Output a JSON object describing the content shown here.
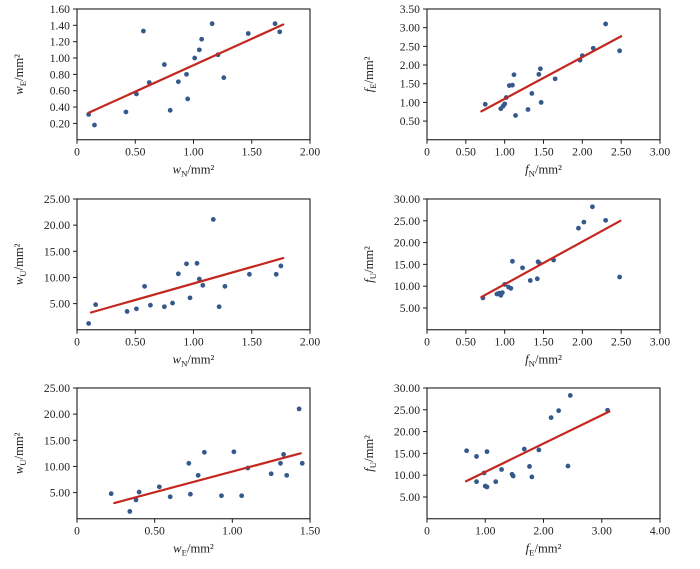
{
  "figure": {
    "background": "#ffffff",
    "layout": "2x3-scatter-grid"
  },
  "colors": {
    "marker": "#36598c",
    "trend": "#c4271f",
    "frame": "#1c1c1c",
    "text": "#1c1c1c"
  },
  "chart_data": [
    {
      "id": "wE-vs-wN",
      "type": "scatter",
      "x_var": "w",
      "x_sub": "N",
      "y_var": "w",
      "y_sub": "E",
      "unit": "/mm²",
      "xlabel": "wN/mm²",
      "ylabel": "wE/mm²",
      "xlim": [
        0,
        2.0
      ],
      "ylim": [
        0,
        1.6
      ],
      "grid": false,
      "legend": "none",
      "xticks": {
        "values": [
          0,
          0.5,
          1.0,
          1.5,
          2.0
        ],
        "labels": [
          "0",
          "0.50",
          "1.00",
          "1.50",
          "2.00"
        ]
      },
      "yticks": {
        "values": [
          0.2,
          0.4,
          0.6,
          0.8,
          1.0,
          1.2,
          1.4,
          1.6
        ],
        "labels": [
          "0.20",
          "0.40",
          "0.60",
          "0.80",
          "1.00",
          "1.20",
          "1.40",
          "1.60"
        ]
      },
      "points": [
        [
          0.1,
          0.31
        ],
        [
          0.15,
          0.18
        ],
        [
          0.42,
          0.34
        ],
        [
          0.51,
          0.56
        ],
        [
          0.57,
          1.33
        ],
        [
          0.62,
          0.7
        ],
        [
          0.75,
          0.92
        ],
        [
          0.8,
          0.36
        ],
        [
          0.87,
          0.71
        ],
        [
          0.94,
          0.8
        ],
        [
          0.95,
          0.5
        ],
        [
          1.01,
          1.0
        ],
        [
          1.05,
          1.1
        ],
        [
          1.07,
          1.23
        ],
        [
          1.16,
          1.42
        ],
        [
          1.21,
          1.04
        ],
        [
          1.26,
          0.76
        ],
        [
          1.47,
          1.3
        ],
        [
          1.7,
          1.42
        ],
        [
          1.74,
          1.32
        ]
      ],
      "trend": [
        [
          0.1,
          0.33
        ],
        [
          1.77,
          1.41
        ]
      ]
    },
    {
      "id": "fE-vs-fN",
      "type": "scatter",
      "x_var": "f",
      "x_sub": "N",
      "y_var": "f",
      "y_sub": "E",
      "unit": "/mm²",
      "xlabel": "fN/mm²",
      "ylabel": "fE/mm²",
      "xlim": [
        0,
        3.0
      ],
      "ylim": [
        0,
        3.5
      ],
      "grid": false,
      "legend": "none",
      "xticks": {
        "values": [
          0,
          0.5,
          1.0,
          1.5,
          2.0,
          2.5,
          3.0
        ],
        "labels": [
          "0",
          "0.50",
          "1.00",
          "1.50",
          "2.00",
          "2.50",
          "3.00"
        ]
      },
      "yticks": {
        "values": [
          0.5,
          1.0,
          1.5,
          2.0,
          2.5,
          3.0,
          3.5
        ],
        "labels": [
          "0.50",
          "1.00",
          "1.50",
          "2.00",
          "2.50",
          "3.00",
          "3.50"
        ]
      },
      "points": [
        [
          0.75,
          0.95
        ],
        [
          0.95,
          0.83
        ],
        [
          0.98,
          0.9
        ],
        [
          1.0,
          0.96
        ],
        [
          1.02,
          1.13
        ],
        [
          1.06,
          1.45
        ],
        [
          1.1,
          1.46
        ],
        [
          1.12,
          1.74
        ],
        [
          1.14,
          0.65
        ],
        [
          1.3,
          0.81
        ],
        [
          1.35,
          1.24
        ],
        [
          1.44,
          1.75
        ],
        [
          1.46,
          1.9
        ],
        [
          1.47,
          1.0
        ],
        [
          1.65,
          1.63
        ],
        [
          1.97,
          2.13
        ],
        [
          2.0,
          2.25
        ],
        [
          2.14,
          2.45
        ],
        [
          2.3,
          3.1
        ],
        [
          2.48,
          2.38
        ]
      ],
      "trend": [
        [
          0.7,
          0.76
        ],
        [
          2.5,
          2.77
        ]
      ]
    },
    {
      "id": "wU-vs-wN",
      "type": "scatter",
      "x_var": "w",
      "x_sub": "N",
      "y_var": "w",
      "y_sub": "U",
      "unit": "/mm²",
      "xlabel": "wN/mm²",
      "ylabel": "wU/mm²",
      "xlim": [
        0,
        2.0
      ],
      "ylim": [
        0,
        25.0
      ],
      "grid": false,
      "legend": "none",
      "xticks": {
        "values": [
          0,
          0.5,
          1.0,
          1.5,
          2.0
        ],
        "labels": [
          "0",
          "0.50",
          "1.00",
          "1.50",
          "2.00"
        ]
      },
      "yticks": {
        "values": [
          5,
          10,
          15,
          20,
          25
        ],
        "labels": [
          "5.00",
          "10.00",
          "15.00",
          "20.00",
          "25.00"
        ]
      },
      "points": [
        [
          0.1,
          1.2
        ],
        [
          0.16,
          4.8
        ],
        [
          0.43,
          3.5
        ],
        [
          0.51,
          4.0
        ],
        [
          0.58,
          8.3
        ],
        [
          0.63,
          4.7
        ],
        [
          0.75,
          4.4
        ],
        [
          0.82,
          5.1
        ],
        [
          0.87,
          10.7
        ],
        [
          0.94,
          12.6
        ],
        [
          0.97,
          6.1
        ],
        [
          1.03,
          12.7
        ],
        [
          1.05,
          9.7
        ],
        [
          1.08,
          8.5
        ],
        [
          1.17,
          21.1
        ],
        [
          1.22,
          4.4
        ],
        [
          1.27,
          8.3
        ],
        [
          1.48,
          10.6
        ],
        [
          1.71,
          10.6
        ],
        [
          1.75,
          12.2
        ]
      ],
      "trend": [
        [
          0.12,
          3.3
        ],
        [
          1.77,
          13.7
        ]
      ]
    },
    {
      "id": "fU-vs-fN",
      "type": "scatter",
      "x_var": "f",
      "x_sub": "N",
      "y_var": "f",
      "y_sub": "U",
      "unit": "/mm²",
      "xlabel": "fN/mm²",
      "ylabel": "fU/mm²",
      "xlim": [
        0,
        3.0
      ],
      "ylim": [
        0,
        30.0
      ],
      "grid": false,
      "legend": "none",
      "xticks": {
        "values": [
          0,
          0.5,
          1.0,
          1.5,
          2.0,
          2.5,
          3.0
        ],
        "labels": [
          "0",
          "0.50",
          "1.00",
          "1.50",
          "2.00",
          "2.50",
          "3.00"
        ]
      },
      "yticks": {
        "values": [
          5,
          10,
          15,
          20,
          25,
          30
        ],
        "labels": [
          "5.00",
          "10.00",
          "15.00",
          "20.00",
          "25.00",
          "30.00"
        ]
      },
      "points": [
        [
          0.72,
          7.3
        ],
        [
          0.9,
          8.2
        ],
        [
          0.93,
          8.4
        ],
        [
          0.95,
          7.9
        ],
        [
          0.97,
          8.5
        ],
        [
          1.0,
          10.4
        ],
        [
          1.05,
          9.8
        ],
        [
          1.08,
          9.5
        ],
        [
          1.1,
          15.7
        ],
        [
          1.23,
          14.2
        ],
        [
          1.33,
          11.3
        ],
        [
          1.42,
          11.7
        ],
        [
          1.43,
          15.6
        ],
        [
          1.45,
          15.2
        ],
        [
          1.63,
          16.0
        ],
        [
          1.95,
          23.3
        ],
        [
          2.02,
          24.7
        ],
        [
          2.13,
          28.2
        ],
        [
          2.3,
          25.1
        ],
        [
          2.48,
          12.1
        ]
      ],
      "trend": [
        [
          0.7,
          7.5
        ],
        [
          2.49,
          25.0
        ]
      ]
    },
    {
      "id": "wU-vs-wE",
      "type": "scatter",
      "x_var": "w",
      "x_sub": "E",
      "y_var": "w",
      "y_sub": "U",
      "unit": "/mm²",
      "xlabel": "wE/mm²",
      "ylabel": "wU/mm²",
      "xlim": [
        0,
        1.5
      ],
      "ylim": [
        0,
        25.0
      ],
      "grid": false,
      "legend": "none",
      "xticks": {
        "values": [
          0,
          0.5,
          1.0,
          1.5
        ],
        "labels": [
          "0",
          "0.50",
          "1.00",
          "1.50"
        ]
      },
      "yticks": {
        "values": [
          5,
          10,
          15,
          20,
          25
        ],
        "labels": [
          "5.00",
          "10.00",
          "15.00",
          "20.00",
          "25.00"
        ]
      },
      "points": [
        [
          0.22,
          4.8
        ],
        [
          0.34,
          1.4
        ],
        [
          0.38,
          3.6
        ],
        [
          0.4,
          5.1
        ],
        [
          0.53,
          6.1
        ],
        [
          0.6,
          4.2
        ],
        [
          0.72,
          10.6
        ],
        [
          0.73,
          4.7
        ],
        [
          0.78,
          8.3
        ],
        [
          0.82,
          12.7
        ],
        [
          0.93,
          4.4
        ],
        [
          1.01,
          12.8
        ],
        [
          1.06,
          4.4
        ],
        [
          1.1,
          9.7
        ],
        [
          1.25,
          8.6
        ],
        [
          1.31,
          10.6
        ],
        [
          1.33,
          12.3
        ],
        [
          1.35,
          8.3
        ],
        [
          1.43,
          21.0
        ],
        [
          1.45,
          10.6
        ]
      ],
      "trend": [
        [
          0.24,
          3.0
        ],
        [
          1.44,
          12.5
        ]
      ]
    },
    {
      "id": "fU-vs-fE",
      "type": "scatter",
      "x_var": "f",
      "x_sub": "E",
      "y_var": "f",
      "y_sub": "U",
      "unit": "/mm²",
      "xlabel": "fE/mm²",
      "ylabel": "fU/mm²",
      "xlim": [
        0,
        4.0
      ],
      "ylim": [
        0,
        30.0
      ],
      "grid": false,
      "legend": "none",
      "xticks": {
        "values": [
          0,
          1.0,
          2.0,
          3.0,
          4.0
        ],
        "labels": [
          "0",
          "1.00",
          "2.00",
          "3.00",
          "4.00"
        ]
      },
      "yticks": {
        "values": [
          5,
          10,
          15,
          20,
          25,
          30
        ],
        "labels": [
          "5.00",
          "10.00",
          "15.00",
          "20.00",
          "25.00",
          "30.00"
        ]
      },
      "points": [
        [
          0.68,
          15.6
        ],
        [
          0.85,
          14.3
        ],
        [
          0.85,
          8.5
        ],
        [
          0.98,
          10.5
        ],
        [
          1.0,
          7.5
        ],
        [
          1.03,
          7.3
        ],
        [
          1.03,
          15.4
        ],
        [
          1.18,
          8.5
        ],
        [
          1.28,
          11.3
        ],
        [
          1.46,
          10.2
        ],
        [
          1.48,
          9.8
        ],
        [
          1.67,
          16.0
        ],
        [
          1.76,
          12.0
        ],
        [
          1.8,
          9.6
        ],
        [
          1.92,
          15.8
        ],
        [
          2.13,
          23.2
        ],
        [
          2.26,
          24.8
        ],
        [
          2.42,
          12.1
        ],
        [
          2.46,
          28.3
        ],
        [
          3.1,
          24.9
        ]
      ],
      "trend": [
        [
          0.67,
          8.6
        ],
        [
          3.13,
          24.6
        ]
      ]
    }
  ]
}
